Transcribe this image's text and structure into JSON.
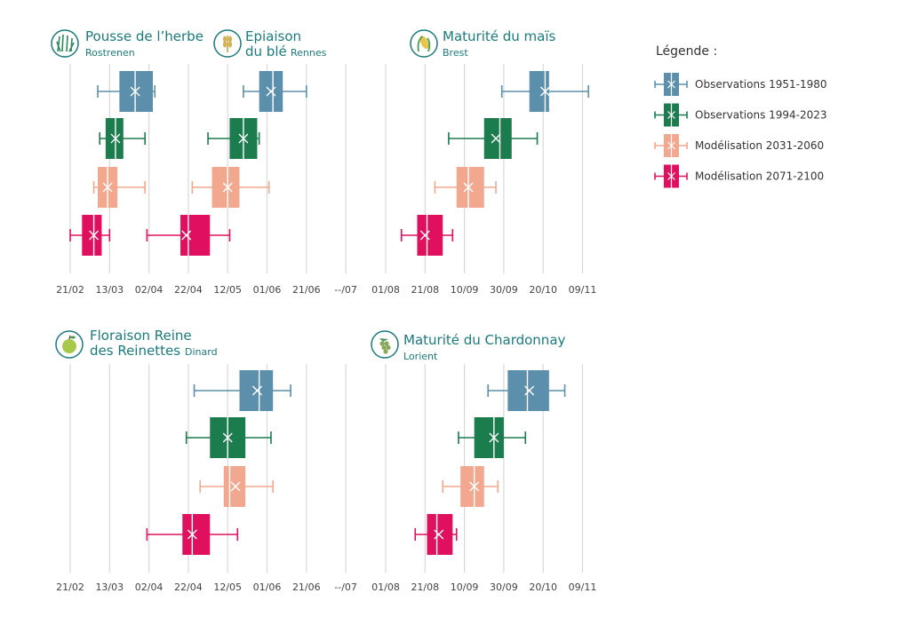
{
  "colors": {
    "obs1951": "#5b8fab",
    "obs1994": "#1b7c4e",
    "mod2031": "#f2a88e",
    "mod2071": "#e0105e",
    "title": "#1a7a7c"
  },
  "legend": {
    "title": "Légende :",
    "items": [
      {
        "label": "Observations 1951-1980",
        "color": "#5b8fab"
      },
      {
        "label": "Observations 1994-2023",
        "color": "#1b7c4e"
      },
      {
        "label": "Modélisation 2031-2060",
        "color": "#f2a88e"
      },
      {
        "label": "Modélisation 2071-2100",
        "color": "#e0105e"
      }
    ]
  },
  "ticks": {
    "left": [
      "21/02",
      "13/03",
      "02/04",
      "22/04",
      "12/05",
      "01/06",
      "21/06",
      "--/07"
    ],
    "right": [
      "01/08",
      "21/08",
      "10/09",
      "30/09",
      "20/10",
      "09/11"
    ]
  },
  "chart_data": [
    {
      "type": "box",
      "panel": "top-left",
      "title": "Pousse de l’herbe",
      "subtitle": "Rostrenen",
      "icon": "grass-icon",
      "series": [
        {
          "name": "Observations 1951-1980",
          "whisker_low": "07/03",
          "q1": "18/03",
          "median": "26/03",
          "q3": "04/04",
          "whisker_high": "05/04",
          "mean": "26/03"
        },
        {
          "name": "Observations 1994-2023",
          "whisker_low": "08/03",
          "q1": "11/03",
          "median": "16/03",
          "q3": "20/03",
          "whisker_high": "31/03",
          "mean": "16/03"
        },
        {
          "name": "Modélisation 2031-2060",
          "whisker_low": "05/03",
          "q1": "07/03",
          "median": "12/03",
          "q3": "17/03",
          "whisker_high": "31/03",
          "mean": "12/03"
        },
        {
          "name": "Modélisation 2071-2100",
          "whisker_low": "21/02",
          "q1": "27/02",
          "median": "05/03",
          "q3": "09/03",
          "whisker_high": "13/03",
          "mean": "05/03"
        }
      ]
    },
    {
      "type": "box",
      "panel": "top-left",
      "title": "Epiaison du blé",
      "subtitle": "Rennes",
      "icon": "wheat-icon",
      "series": [
        {
          "name": "Observations 1951-1980",
          "whisker_low": "20/05",
          "q1": "28/05",
          "median": "04/06",
          "q3": "09/06",
          "whisker_high": "21/06",
          "mean": "03/06"
        },
        {
          "name": "Observations 1994-2023",
          "whisker_low": "02/05",
          "q1": "13/05",
          "median": "20/05",
          "q3": "27/05",
          "whisker_high": "28/05",
          "mean": "20/05"
        },
        {
          "name": "Modélisation 2031-2060",
          "whisker_low": "24/04",
          "q1": "04/05",
          "median": "12/05",
          "q3": "18/05",
          "whisker_high": "02/06",
          "mean": "12/05"
        },
        {
          "name": "Modélisation 2071-2100",
          "whisker_low": "01/04",
          "q1": "18/04",
          "median": "22/04",
          "q3": "03/05",
          "whisker_high": "13/05",
          "mean": "21/04"
        }
      ]
    },
    {
      "type": "box",
      "panel": "top-right",
      "title": "Maturité du maïs",
      "subtitle": "Brest",
      "icon": "corn-icon",
      "series": [
        {
          "name": "Observations 1951-1980",
          "whisker_low": "29/09",
          "q1": "13/10",
          "median": "21/10",
          "q3": "23/10",
          "whisker_high": "12/11",
          "mean": "21/10"
        },
        {
          "name": "Observations 1994-2023",
          "whisker_low": "02/09",
          "q1": "20/09",
          "median": "28/09",
          "q3": "04/10",
          "whisker_high": "17/10",
          "mean": "26/09"
        },
        {
          "name": "Modélisation 2031-2060",
          "whisker_low": "26/08",
          "q1": "06/09",
          "median": "12/09",
          "q3": "20/09",
          "whisker_high": "26/09",
          "mean": "12/09"
        },
        {
          "name": "Modélisation 2071-2100",
          "whisker_low": "09/08",
          "q1": "17/08",
          "median": "22/08",
          "q3": "30/08",
          "whisker_high": "04/09",
          "mean": "21/08"
        }
      ]
    },
    {
      "type": "box",
      "panel": "bottom-left",
      "title": "Floraison Reine des Reinettes",
      "title_line1": "Floraison Reine",
      "title_line2": "des Reinettes",
      "subtitle": "Dinard",
      "icon": "apple-icon",
      "series": [
        {
          "name": "Observations 1951-1980",
          "whisker_low": "25/04",
          "q1": "18/05",
          "median": "28/05",
          "q3": "04/06",
          "whisker_high": "13/06",
          "mean": "27/05"
        },
        {
          "name": "Observations 1994-2023",
          "whisker_low": "21/04",
          "q1": "03/05",
          "median": "12/05",
          "q3": "21/05",
          "whisker_high": "03/06",
          "mean": "12/05"
        },
        {
          "name": "Modélisation 2031-2060",
          "whisker_low": "28/04",
          "q1": "10/05",
          "median": "13/05",
          "q3": "21/05",
          "whisker_high": "04/06",
          "mean": "16/05"
        },
        {
          "name": "Modélisation 2071-2100",
          "whisker_low": "01/04",
          "q1": "19/04",
          "median": "24/04",
          "q3": "03/05",
          "whisker_high": "17/05",
          "mean": "24/04"
        }
      ]
    },
    {
      "type": "box",
      "panel": "bottom-right",
      "title": "Maturité du Chardonnay",
      "subtitle": "Lorient",
      "icon": "grape-icon",
      "series": [
        {
          "name": "Observations 1951-1980",
          "whisker_low": "22/09",
          "q1": "02/10",
          "median": "12/10",
          "q3": "23/10",
          "whisker_high": "31/10",
          "mean": "13/10"
        },
        {
          "name": "Observations 1994-2023",
          "whisker_low": "07/09",
          "q1": "15/09",
          "median": "25/09",
          "q3": "30/09",
          "whisker_high": "11/10",
          "mean": "25/09"
        },
        {
          "name": "Modélisation 2031-2060",
          "whisker_low": "30/08",
          "q1": "08/09",
          "median": "15/09",
          "q3": "20/09",
          "whisker_high": "27/09",
          "mean": "15/09"
        },
        {
          "name": "Modélisation 2071-2100",
          "whisker_low": "16/08",
          "q1": "22/08",
          "median": "27/08",
          "q3": "04/09",
          "whisker_high": "06/09",
          "mean": "28/08"
        }
      ]
    }
  ]
}
